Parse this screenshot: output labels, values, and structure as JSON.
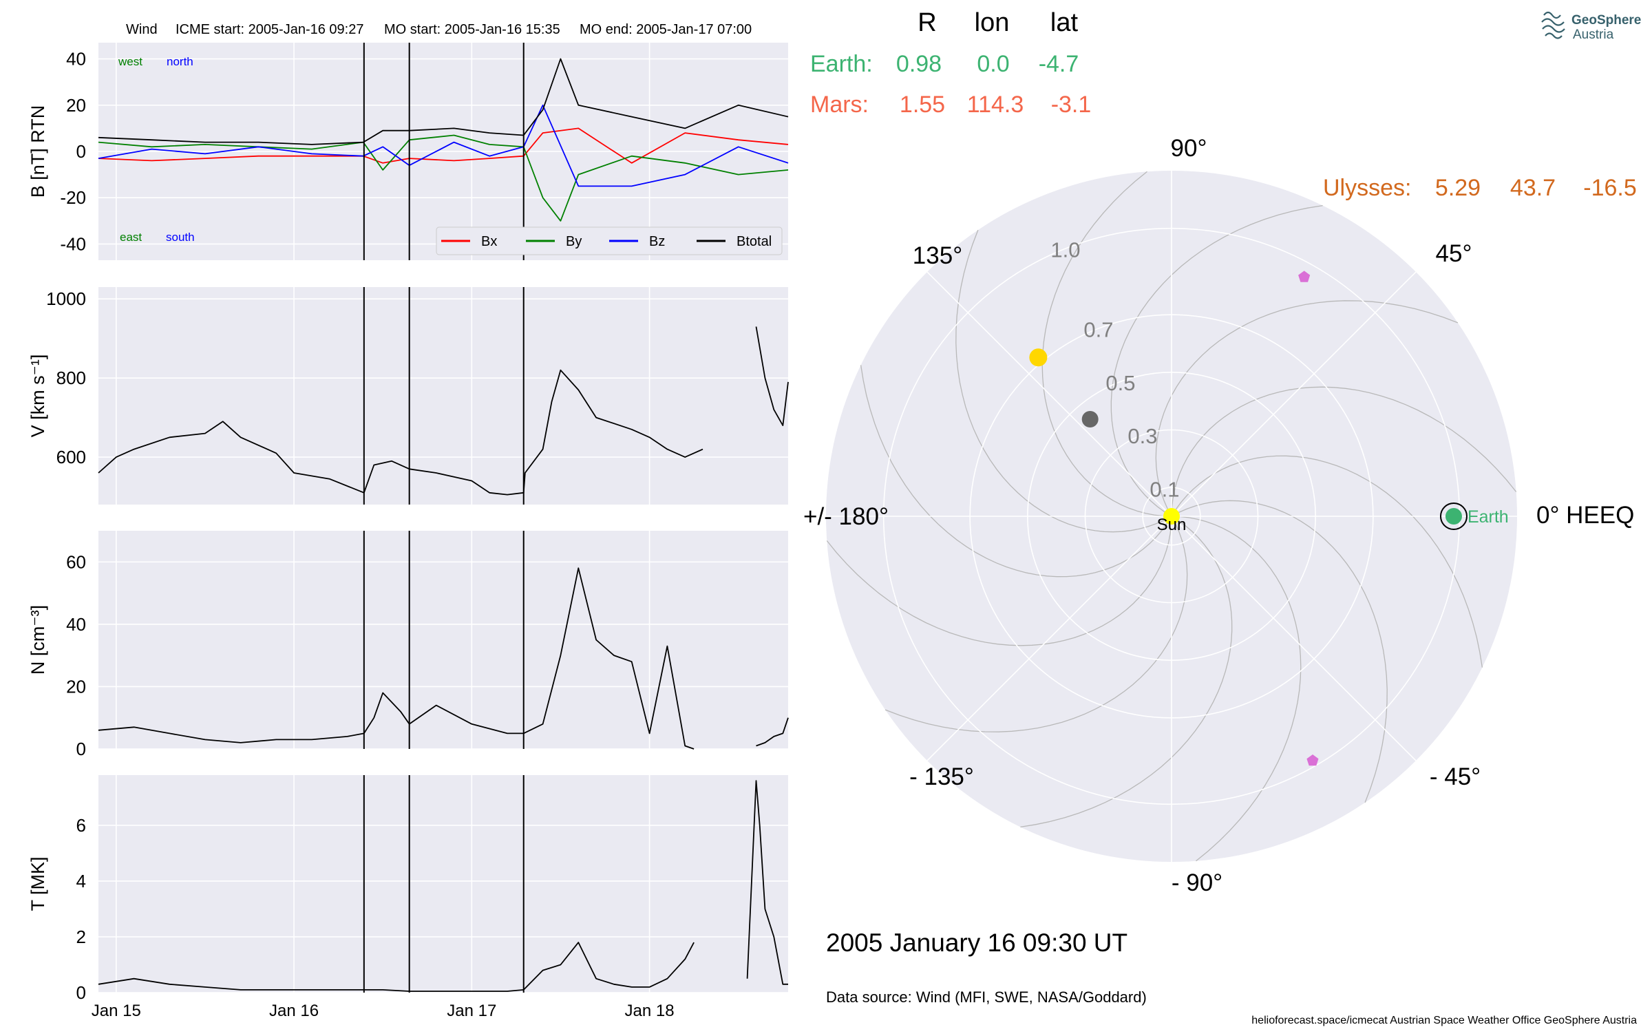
{
  "header": {
    "spacecraft": "Wind",
    "icme_start": "ICME start: 2005-Jan-16 09:27",
    "mo_start": "MO start: 2005-Jan-16 15:35",
    "mo_end": "MO end: 2005-Jan-17 07:00"
  },
  "logo": {
    "line1": "GeoSphere",
    "line2": "Austria"
  },
  "colors": {
    "panel_bg": "#eaeaf2",
    "grid": "#ffffff",
    "bx": "#ff0000",
    "by": "#008000",
    "bz": "#0000ff",
    "btotal": "#000000",
    "earth": "#3cb371",
    "mars": "#f4664a",
    "ulysses": "#d2691e",
    "sun": "#ffff00",
    "psp_marker": "#da70d6",
    "venus": "#ffd700",
    "mercury": "#666666"
  },
  "positions_table": {
    "headers": [
      "R",
      "lon",
      "lat"
    ],
    "rows": [
      {
        "name": "Earth:",
        "r": "0.98",
        "lon": "0.0",
        "lat": "-4.7"
      },
      {
        "name": "Mars:",
        "r": "1.55",
        "lon": "114.3",
        "lat": "-3.1"
      }
    ],
    "ulysses": {
      "name": "Ulysses:",
      "r": "5.29",
      "lon": "43.7",
      "lat": "-16.5"
    }
  },
  "date_label": "2005 January 16  09:30 UT",
  "data_source": "Data source: Wind (MFI, SWE, NASA/Goddard)",
  "footer": "helioforecast.space/icmecat   Austrian Space Weather Office   GeoSphere Austria",
  "chart_data": [
    {
      "type": "line",
      "panel": "magnetic_field",
      "ylabel": "B [nT] RTN",
      "ylim": [
        -47,
        47
      ],
      "yticks": [
        -40,
        -20,
        0,
        20,
        40
      ],
      "x_unit": "days since 2005-Jan-15 00:00",
      "xlim": [
        -0.1,
        3.78
      ],
      "event_lines": [
        1.394,
        1.649,
        2.292
      ],
      "annotations": {
        "top_left": [
          "west",
          "north"
        ],
        "bottom_left": [
          "east",
          "south"
        ]
      },
      "legend": [
        "Bx",
        "By",
        "Bz",
        "Btotal"
      ],
      "series": [
        {
          "name": "Bx",
          "x": [
            -0.1,
            0.2,
            0.5,
            0.8,
            1.1,
            1.39,
            1.5,
            1.649,
            1.9,
            2.1,
            2.292,
            2.4,
            2.6,
            2.9,
            3.2,
            3.5,
            3.78
          ],
          "y": [
            -3,
            -4,
            -3,
            -2,
            -2,
            -2,
            -5,
            -3,
            -4,
            -3,
            -2,
            8,
            10,
            -5,
            8,
            5,
            3
          ]
        },
        {
          "name": "By",
          "x": [
            -0.1,
            0.2,
            0.5,
            0.8,
            1.1,
            1.39,
            1.5,
            1.649,
            1.9,
            2.1,
            2.292,
            2.4,
            2.5,
            2.6,
            2.9,
            3.2,
            3.5,
            3.78
          ],
          "y": [
            4,
            2,
            3,
            2,
            1,
            4,
            -8,
            5,
            7,
            3,
            2,
            -20,
            -30,
            -10,
            -2,
            -5,
            -10,
            -8
          ]
        },
        {
          "name": "Bz",
          "x": [
            -0.1,
            0.2,
            0.5,
            0.8,
            1.1,
            1.39,
            1.5,
            1.649,
            1.9,
            2.1,
            2.292,
            2.4,
            2.6,
            2.9,
            3.2,
            3.5,
            3.78
          ],
          "y": [
            -3,
            1,
            -1,
            2,
            -1,
            -2,
            2,
            -6,
            4,
            -2,
            2,
            20,
            -15,
            -15,
            -10,
            2,
            -5
          ]
        },
        {
          "name": "Btotal",
          "x": [
            -0.1,
            0.2,
            0.5,
            0.8,
            1.1,
            1.39,
            1.5,
            1.649,
            1.9,
            2.1,
            2.292,
            2.4,
            2.5,
            2.6,
            2.9,
            3.2,
            3.5,
            3.78
          ],
          "y": [
            6,
            5,
            4,
            4,
            3,
            4,
            9,
            9,
            10,
            8,
            7,
            18,
            40,
            20,
            15,
            10,
            20,
            15
          ]
        }
      ]
    },
    {
      "type": "line",
      "panel": "speed",
      "ylabel": "V [km s⁻¹]",
      "ylim": [
        480,
        1030
      ],
      "yticks": [
        600,
        800,
        1000
      ],
      "x_unit": "days since 2005-Jan-15 00:00",
      "xlim": [
        -0.1,
        3.78
      ],
      "event_lines": [
        1.394,
        1.649,
        2.292
      ],
      "series": [
        {
          "name": "V",
          "segments": [
            {
              "x": [
                -0.1,
                0.0,
                0.1,
                0.3,
                0.5,
                0.6,
                0.7,
                0.9,
                1.0,
                1.2,
                1.394,
                1.45,
                1.55,
                1.649,
                1.8,
                2.0,
                2.1,
                2.2,
                2.292,
                2.3,
                2.4,
                2.45,
                2.5,
                2.6,
                2.7,
                2.9,
                3.0,
                3.1,
                3.2,
                3.3
              ],
              "y": [
                560,
                600,
                620,
                650,
                660,
                690,
                650,
                610,
                560,
                545,
                510,
                580,
                590,
                570,
                560,
                540,
                510,
                505,
                510,
                560,
                620,
                740,
                820,
                770,
                700,
                670,
                650,
                620,
                600,
                620
              ]
            },
            {
              "x": [
                3.6,
                3.65,
                3.7,
                3.75,
                3.78
              ],
              "y": [
                930,
                800,
                720,
                680,
                790
              ]
            }
          ]
        }
      ]
    },
    {
      "type": "line",
      "panel": "density",
      "ylabel": "N [cm⁻³]",
      "ylim": [
        0,
        70
      ],
      "yticks": [
        0,
        20,
        40,
        60
      ],
      "x_unit": "days since 2005-Jan-15 00:00",
      "xlim": [
        -0.1,
        3.78
      ],
      "event_lines": [
        1.394,
        1.649,
        2.292
      ],
      "series": [
        {
          "name": "N",
          "segments": [
            {
              "x": [
                -0.1,
                0.1,
                0.3,
                0.5,
                0.7,
                0.9,
                1.1,
                1.3,
                1.394,
                1.45,
                1.5,
                1.6,
                1.649,
                1.8,
                2.0,
                2.2,
                2.292,
                2.4,
                2.5,
                2.6,
                2.7,
                2.8,
                2.9,
                3.0,
                3.1,
                3.2,
                3.25
              ],
              "y": [
                6,
                7,
                5,
                3,
                2,
                3,
                3,
                4,
                5,
                10,
                18,
                12,
                8,
                14,
                8,
                5,
                5,
                8,
                30,
                58,
                35,
                30,
                28,
                5,
                33,
                1,
                0
              ]
            },
            {
              "x": [
                3.6,
                3.65,
                3.7,
                3.75,
                3.78
              ],
              "y": [
                1,
                2,
                4,
                5,
                10
              ]
            }
          ]
        }
      ]
    },
    {
      "type": "line",
      "panel": "temperature",
      "ylabel": "T [MK]",
      "ylim": [
        0,
        7.8
      ],
      "yticks": [
        0,
        2,
        4,
        6
      ],
      "x_unit": "days since 2005-Jan-15 00:00",
      "xlim": [
        -0.1,
        3.78
      ],
      "xticks": [
        "Jan 15",
        "Jan 16",
        "Jan 17",
        "Jan 18"
      ],
      "event_lines": [
        1.394,
        1.649,
        2.292
      ],
      "series": [
        {
          "name": "T",
          "segments": [
            {
              "x": [
                -0.1,
                0.1,
                0.3,
                0.5,
                0.7,
                0.9,
                1.1,
                1.3,
                1.394,
                1.5,
                1.649,
                1.8,
                2.0,
                2.2,
                2.292,
                2.4,
                2.5,
                2.6,
                2.7,
                2.8,
                2.9,
                3.0,
                3.1,
                3.2,
                3.25
              ],
              "y": [
                0.3,
                0.5,
                0.3,
                0.2,
                0.1,
                0.1,
                0.1,
                0.1,
                0.1,
                0.1,
                0.05,
                0.05,
                0.05,
                0.05,
                0.1,
                0.8,
                1.0,
                1.8,
                0.5,
                0.3,
                0.2,
                0.2,
                0.5,
                1.2,
                1.8
              ]
            },
            {
              "x": [
                3.55,
                3.6,
                3.62,
                3.65,
                3.7,
                3.75,
                3.78
              ],
              "y": [
                0.5,
                7.6,
                6.0,
                3.0,
                2.0,
                0.3,
                0.3
              ]
            }
          ]
        }
      ]
    },
    {
      "type": "polar",
      "panel": "positions",
      "rlabels": [
        "0.1",
        "0.3",
        "0.5",
        "0.7",
        "1.0"
      ],
      "rings": [
        0.1,
        0.3,
        0.5,
        0.7,
        1.0
      ],
      "rmax": 1.2,
      "angle_labels": [
        {
          "deg": 90,
          "text": "90°"
        },
        {
          "deg": 45,
          "text": "45°"
        },
        {
          "deg": 0,
          "text": "0° HEEQ"
        },
        {
          "deg": -45,
          "text": "- 45°"
        },
        {
          "deg": -90,
          "text": "- 90°"
        },
        {
          "deg": -135,
          "text": "- 135°"
        },
        {
          "deg": 180,
          "text": "+/- 180°"
        },
        {
          "deg": 135,
          "text": "135°"
        }
      ],
      "bodies": [
        {
          "name": "Sun",
          "r": 0.0,
          "lon": 0.0,
          "label": "Sun"
        },
        {
          "name": "Earth",
          "r": 0.98,
          "lon": 0.0,
          "label": "Earth"
        },
        {
          "name": "Venus",
          "r": 0.72,
          "lon": 130.0
        },
        {
          "name": "Mercury",
          "r": 0.44,
          "lon": 130.0
        },
        {
          "name": "Probe A",
          "r": 0.95,
          "lon": 61.0
        },
        {
          "name": "Probe B",
          "r": 0.98,
          "lon": -60.0
        }
      ]
    }
  ]
}
